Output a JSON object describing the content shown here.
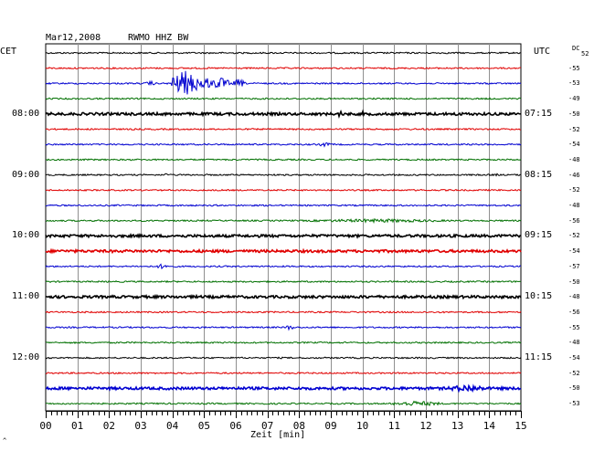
{
  "chart_data": {
    "type": "line",
    "title": "Mar12,2008",
    "station": "RWMO HHZ BW",
    "left_tz": "CET",
    "right_tz": "UTC",
    "dc_label": "DC",
    "dc_first": "52",
    "xlabel": "Zeit [min]",
    "xlim": [
      0,
      15
    ],
    "x_ticks": [
      "00",
      "01",
      "02",
      "03",
      "04",
      "05",
      "06",
      "07",
      "08",
      "09",
      "10",
      "11",
      "12",
      "13",
      "14",
      "15"
    ],
    "grid": true,
    "trace_colors": [
      "#000000",
      "#e00000",
      "#0000d0",
      "#007000"
    ],
    "traces": [
      {
        "color_index": 0,
        "dc": ""
      },
      {
        "color_index": 1,
        "dc": "-55"
      },
      {
        "color_index": 2,
        "dc": "-53",
        "events": [
          {
            "t": 3.3,
            "w": 0.15,
            "a": 3
          },
          {
            "t": 4.4,
            "w": 0.5,
            "a": 14
          },
          {
            "t": 5.0,
            "w": 0.25,
            "a": 8
          },
          {
            "t": 5.5,
            "w": 0.3,
            "a": 7
          },
          {
            "t": 6.1,
            "w": 0.2,
            "a": 5
          }
        ]
      },
      {
        "color_index": 3,
        "dc": "-49"
      },
      {
        "color_index": 0,
        "dc": "-50",
        "thick": true,
        "events": [
          {
            "t": 9.3,
            "w": 0.08,
            "a": 4
          },
          {
            "t": 10.0,
            "w": 0.05,
            "a": 3
          },
          {
            "t": 13.0,
            "w": 0.05,
            "a": 5
          }
        ]
      },
      {
        "color_index": 1,
        "dc": "-52"
      },
      {
        "color_index": 2,
        "dc": "-54",
        "events": [
          {
            "t": 8.8,
            "w": 0.15,
            "a": 3
          }
        ]
      },
      {
        "color_index": 3,
        "dc": "-48"
      },
      {
        "color_index": 0,
        "dc": "-46",
        "events": [
          {
            "t": 3.8,
            "w": 0.1,
            "a": 2
          },
          {
            "t": 14.2,
            "w": 0.1,
            "a": 2
          }
        ]
      },
      {
        "color_index": 1,
        "dc": "-52"
      },
      {
        "color_index": 2,
        "dc": "-48"
      },
      {
        "color_index": 3,
        "dc": "-56",
        "events": [
          {
            "t": 10.5,
            "w": 2.5,
            "a": 2
          }
        ]
      },
      {
        "color_index": 0,
        "dc": "-52",
        "thick": true
      },
      {
        "color_index": 1,
        "dc": "-54",
        "thick": true
      },
      {
        "color_index": 2,
        "dc": "-57",
        "events": [
          {
            "t": 3.7,
            "w": 0.2,
            "a": 3
          }
        ]
      },
      {
        "color_index": 3,
        "dc": "-50"
      },
      {
        "color_index": 0,
        "dc": "-48",
        "thick": true,
        "events": [
          {
            "t": 10.1,
            "w": 0.05,
            "a": 3
          }
        ]
      },
      {
        "color_index": 1,
        "dc": "-56"
      },
      {
        "color_index": 2,
        "dc": "-55",
        "events": [
          {
            "t": 7.7,
            "w": 0.15,
            "a": 3
          }
        ]
      },
      {
        "color_index": 3,
        "dc": "-48"
      },
      {
        "color_index": 0,
        "dc": "-54"
      },
      {
        "color_index": 1,
        "dc": "-52"
      },
      {
        "color_index": 2,
        "dc": "-50",
        "thick": true,
        "events": [
          {
            "t": 13.3,
            "w": 0.6,
            "a": 4
          }
        ]
      },
      {
        "color_index": 3,
        "dc": "-53",
        "events": [
          {
            "t": 11.7,
            "w": 0.8,
            "a": 3
          }
        ]
      }
    ],
    "hour_labels": [
      {
        "row": 4,
        "cet": "08:00",
        "utc": "07:15"
      },
      {
        "row": 8,
        "cet": "09:00",
        "utc": "08:15"
      },
      {
        "row": 12,
        "cet": "10:00",
        "utc": "09:15"
      },
      {
        "row": 16,
        "cet": "11:00",
        "utc": "10:15"
      },
      {
        "row": 20,
        "cet": "12:00",
        "utc": "11:15"
      }
    ]
  }
}
